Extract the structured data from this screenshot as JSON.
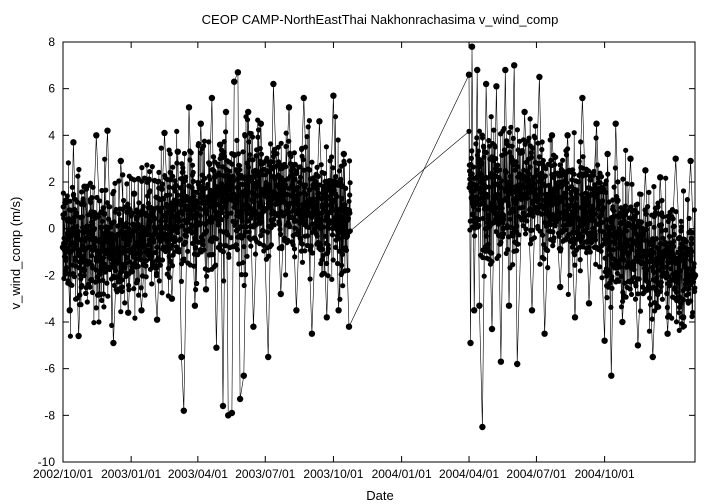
{
  "chart_data": {
    "type": "scatter",
    "title": "CEOP CAMP-NorthEastThai Nakhonrachasima  v_wind_comp",
    "xlabel": "Date",
    "ylabel": "v_wind_comp (m/s)",
    "xlim": [
      "2002-10-01",
      "2005-01-31"
    ],
    "ylim": [
      -10,
      8
    ],
    "x_ticks": [
      "2002/10/01",
      "2003/01/01",
      "2003/04/01",
      "2003/07/01",
      "2003/10/01",
      "2004/01/01",
      "2004/04/01",
      "2004/07/01",
      "2004/10/01"
    ],
    "y_ticks": [
      -10,
      -8,
      -6,
      -4,
      -2,
      0,
      2,
      4,
      6,
      8
    ],
    "grid": false,
    "legend": "none",
    "marker": "filled-circle",
    "connected": true,
    "colors": {
      "points": "#000000",
      "line": "#000000"
    },
    "series": [
      {
        "points": [
          [
            "2002-10-01",
            -0.8
          ],
          [
            "2002-10-05",
            1.2
          ],
          [
            "2002-10-10",
            -3.5
          ],
          [
            "2002-10-15",
            3.7
          ],
          [
            "2002-10-22",
            -4.6
          ],
          [
            "2002-10-30",
            1.8
          ],
          [
            "2002-11-08",
            -2.2
          ],
          [
            "2002-11-15",
            4.0
          ],
          [
            "2002-11-22",
            -1.3
          ],
          [
            "2002-11-30",
            4.2
          ],
          [
            "2002-12-08",
            -4.9
          ],
          [
            "2002-12-18",
            2.9
          ],
          [
            "2002-12-28",
            -3.6
          ],
          [
            "2003-01-05",
            1.5
          ],
          [
            "2003-01-15",
            -3.5
          ],
          [
            "2003-01-25",
            2.1
          ],
          [
            "2003-02-05",
            -3.9
          ],
          [
            "2003-02-15",
            4.1
          ],
          [
            "2003-02-25",
            -3.0
          ],
          [
            "2003-03-05",
            3.3
          ],
          [
            "2003-03-10",
            -5.5
          ],
          [
            "2003-03-13",
            -7.8
          ],
          [
            "2003-03-20",
            5.2
          ],
          [
            "2003-03-28",
            -3.3
          ],
          [
            "2003-04-05",
            4.5
          ],
          [
            "2003-04-12",
            -2.6
          ],
          [
            "2003-04-20",
            5.6
          ],
          [
            "2003-04-26",
            -5.1
          ],
          [
            "2003-05-01",
            3.6
          ],
          [
            "2003-05-05",
            -7.6
          ],
          [
            "2003-05-09",
            5.0
          ],
          [
            "2003-05-12",
            -8.0
          ],
          [
            "2003-05-17",
            -7.9
          ],
          [
            "2003-05-20",
            6.3
          ],
          [
            "2003-05-25",
            6.7
          ],
          [
            "2003-05-28",
            -7.3
          ],
          [
            "2003-06-02",
            -6.3
          ],
          [
            "2003-06-08",
            5.0
          ],
          [
            "2003-06-15",
            -4.2
          ],
          [
            "2003-06-25",
            4.5
          ],
          [
            "2003-07-05",
            -5.5
          ],
          [
            "2003-07-12",
            6.2
          ],
          [
            "2003-07-22",
            -2.8
          ],
          [
            "2003-08-02",
            5.2
          ],
          [
            "2003-08-12",
            -3.5
          ],
          [
            "2003-08-22",
            5.6
          ],
          [
            "2003-09-02",
            -4.5
          ],
          [
            "2003-09-12",
            4.6
          ],
          [
            "2003-09-22",
            -3.8
          ],
          [
            "2003-10-01",
            5.7
          ],
          [
            "2003-10-08",
            -3.5
          ],
          [
            "2003-10-15",
            3.2
          ],
          [
            "2003-10-22",
            -4.2
          ],
          [
            "2004-04-01",
            6.6
          ],
          [
            "2004-04-03",
            -4.9
          ],
          [
            "2004-04-05",
            7.8
          ],
          [
            "2004-04-08",
            -3.5
          ],
          [
            "2004-04-12",
            6.8
          ],
          [
            "2004-04-15",
            -3.3
          ],
          [
            "2004-04-19",
            -8.5
          ],
          [
            "2004-04-24",
            6.2
          ],
          [
            "2004-05-02",
            -4.3
          ],
          [
            "2004-05-08",
            6.1
          ],
          [
            "2004-05-14",
            -5.7
          ],
          [
            "2004-05-20",
            6.8
          ],
          [
            "2004-05-25",
            -3.3
          ],
          [
            "2004-06-01",
            7.0
          ],
          [
            "2004-06-05",
            -5.8
          ],
          [
            "2004-06-15",
            5.0
          ],
          [
            "2004-06-25",
            -3.5
          ],
          [
            "2004-07-05",
            6.5
          ],
          [
            "2004-07-12",
            -4.5
          ],
          [
            "2004-07-22",
            4.0
          ],
          [
            "2004-08-02",
            -2.5
          ],
          [
            "2004-08-12",
            4.0
          ],
          [
            "2004-08-22",
            -3.8
          ],
          [
            "2004-09-01",
            5.6
          ],
          [
            "2004-09-10",
            -3.2
          ],
          [
            "2004-09-20",
            4.5
          ],
          [
            "2004-10-01",
            -4.8
          ],
          [
            "2004-10-05",
            3.2
          ],
          [
            "2004-10-10",
            -6.3
          ],
          [
            "2004-10-16",
            4.5
          ],
          [
            "2004-10-25",
            -4.0
          ],
          [
            "2004-11-05",
            3.0
          ],
          [
            "2004-11-15",
            -5.0
          ],
          [
            "2004-11-25",
            2.5
          ],
          [
            "2004-12-05",
            -5.5
          ],
          [
            "2004-12-15",
            2.2
          ],
          [
            "2004-12-25",
            -4.5
          ],
          [
            "2005-01-05",
            3.0
          ],
          [
            "2005-01-15",
            -3.8
          ],
          [
            "2005-01-25",
            2.9
          ],
          [
            "2005-01-31",
            -2.0
          ]
        ]
      }
    ],
    "dense_bands": [
      {
        "from": "2002-10-01",
        "to": "2002-12-31",
        "center": [
          -0.6,
          -0.8
        ],
        "spread": [
          1.7,
          1.6
        ]
      },
      {
        "from": "2003-01-01",
        "to": "2003-03-31",
        "center": [
          -0.4,
          0.6
        ],
        "spread": [
          1.6,
          1.8
        ]
      },
      {
        "from": "2003-04-01",
        "to": "2003-06-30",
        "center": [
          0.9,
          1.6
        ],
        "spread": [
          1.8,
          1.8
        ]
      },
      {
        "from": "2003-07-01",
        "to": "2003-10-24",
        "center": [
          1.6,
          0.4
        ],
        "spread": [
          1.7,
          1.8
        ]
      },
      {
        "from": "2004-04-01",
        "to": "2004-06-30",
        "center": [
          1.6,
          1.5
        ],
        "spread": [
          1.8,
          1.8
        ]
      },
      {
        "from": "2004-07-01",
        "to": "2004-09-30",
        "center": [
          1.3,
          0.6
        ],
        "spread": [
          1.6,
          1.7
        ]
      },
      {
        "from": "2004-10-01",
        "to": "2005-01-31",
        "center": [
          -0.3,
          -1.8
        ],
        "spread": [
          1.7,
          1.7
        ]
      }
    ]
  }
}
